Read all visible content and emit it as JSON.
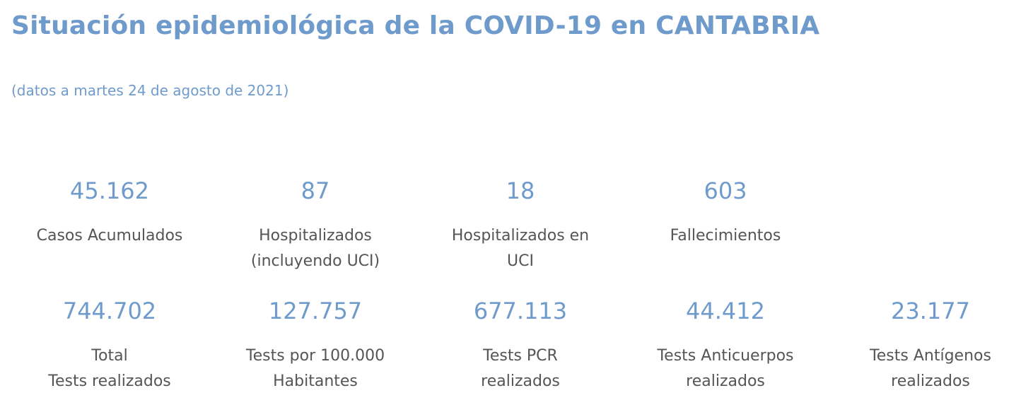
{
  "header": {
    "title": "Situación epidemiológica de la COVID-19 en CANTABRIA",
    "subtitle": "(datos a martes 24 de agosto de 2021)"
  },
  "colors": {
    "accent": "#6f9bcc",
    "label": "#555555"
  },
  "row1": [
    {
      "value": "45.162",
      "label": "Casos Acumulados"
    },
    {
      "value": "87",
      "label": "Hospitalizados\n(incluyendo UCI)"
    },
    {
      "value": "18",
      "label": "Hospitalizados en\nUCI"
    },
    {
      "value": "603",
      "label": "Fallecimientos"
    }
  ],
  "row2": [
    {
      "value": "744.702",
      "label": "Total\nTests realizados"
    },
    {
      "value": "127.757",
      "label": "Tests por 100.000\nHabitantes"
    },
    {
      "value": "677.113",
      "label": "Tests PCR\nrealizados"
    },
    {
      "value": "44.412",
      "label": "Tests Anticuerpos\nrealizados"
    },
    {
      "value": "23.177",
      "label": "Tests Antígenos\nrealizados"
    }
  ]
}
